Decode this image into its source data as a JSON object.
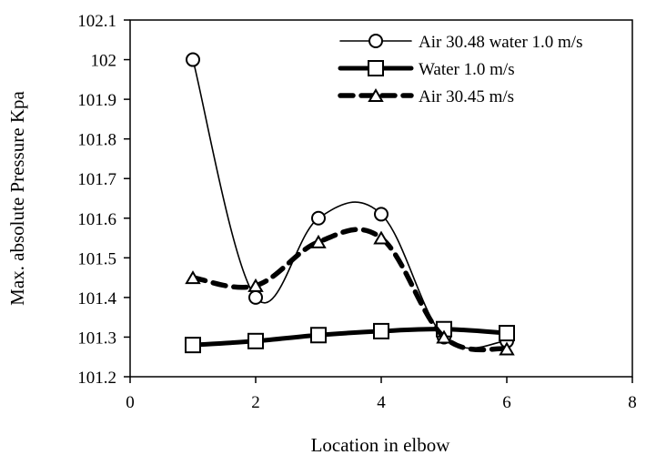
{
  "chart_data": {
    "type": "line",
    "title": "",
    "xlabel": "Location in elbow",
    "ylabel": "Max. absolute Pressure Kpa",
    "xlim": [
      0,
      8
    ],
    "ylim": [
      101.2,
      102.1
    ],
    "xticks": [
      0,
      2,
      4,
      6,
      8
    ],
    "yticks": [
      101.2,
      101.3,
      101.4,
      101.5,
      101.6,
      101.7,
      101.8,
      101.9,
      102,
      102.1
    ],
    "xtick_labels": [
      "0",
      "2",
      "4",
      "6",
      "8"
    ],
    "ytick_labels": [
      "101.2",
      "101.3",
      "101.4",
      "101.5",
      "101.6",
      "101.7",
      "101.8",
      "101.9",
      "102",
      "102.1"
    ],
    "grid": false,
    "legend_position": "top-right",
    "series": [
      {
        "name": "Air 30.48 water 1.0 m/s",
        "x": [
          1,
          2,
          3,
          4,
          5,
          6
        ],
        "y": [
          102.0,
          101.4,
          101.6,
          101.61,
          101.3,
          101.29
        ],
        "marker": "circle",
        "line_style": "thin-solid",
        "color": "#000000"
      },
      {
        "name": "Water 1.0 m/s",
        "x": [
          1,
          2,
          3,
          4,
          5,
          6
        ],
        "y": [
          101.28,
          101.29,
          101.305,
          101.315,
          101.32,
          101.31
        ],
        "marker": "square",
        "line_style": "thick-solid",
        "color": "#000000"
      },
      {
        "name": "Air 30.45 m/s",
        "x": [
          1,
          2,
          3,
          4,
          5,
          6
        ],
        "y": [
          101.45,
          101.43,
          101.54,
          101.55,
          101.3,
          101.27
        ],
        "marker": "triangle",
        "line_style": "thick-dashed",
        "color": "#000000"
      }
    ]
  }
}
